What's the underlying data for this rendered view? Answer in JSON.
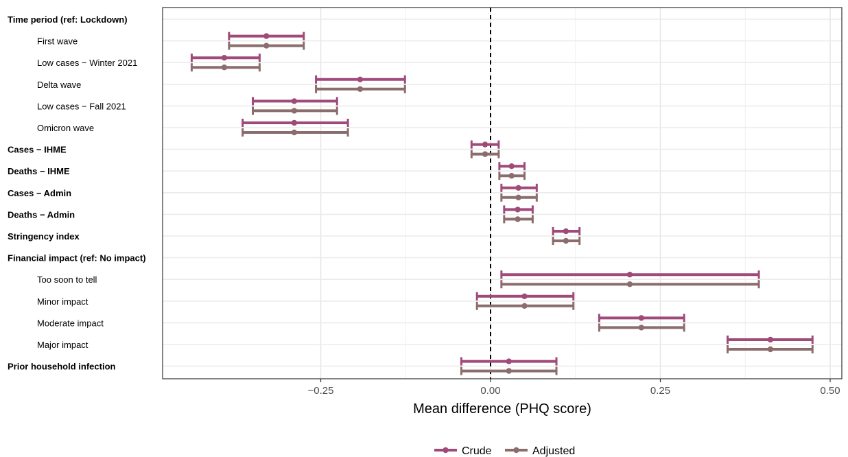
{
  "chart_data": {
    "type": "forest",
    "xlabel": "Mean difference (PHQ score)",
    "xlim": [
      -0.24,
      0.51
    ],
    "xticks": [
      -0.25,
      0.0,
      0.25,
      0.5
    ],
    "xtick_labels": [
      "−0.25",
      "0.00",
      "0.25",
      "0.50"
    ],
    "reference_line": 0,
    "grid": true,
    "legend_position": "bottom",
    "series": [
      {
        "name": "Crude",
        "color": "#a04a7a"
      },
      {
        "name": "Adjusted",
        "color": "#8c6d6d"
      }
    ],
    "rows": [
      {
        "label": "Time period (ref: Lockdown)",
        "header": true,
        "indent": false
      },
      {
        "label": "First wave",
        "header": false,
        "indent": true,
        "crude": {
          "est": -0.33,
          "lo": -0.385,
          "hi": -0.275
        },
        "adjusted": {
          "est": -0.33,
          "lo": -0.385,
          "hi": -0.275
        }
      },
      {
        "label": "Low cases − Winter 2021",
        "header": false,
        "indent": true,
        "crude": {
          "est": -0.392,
          "lo": -0.44,
          "hi": -0.34
        },
        "adjusted": {
          "est": -0.392,
          "lo": -0.44,
          "hi": -0.34
        }
      },
      {
        "label": "Delta wave",
        "header": false,
        "indent": true,
        "crude": {
          "est": -0.192,
          "lo": -0.257,
          "hi": -0.126
        },
        "adjusted": {
          "est": -0.192,
          "lo": -0.257,
          "hi": -0.126
        }
      },
      {
        "label": "Low cases − Fall 2021",
        "header": false,
        "indent": true,
        "crude": {
          "est": -0.289,
          "lo": -0.35,
          "hi": -0.226
        },
        "adjusted": {
          "est": -0.289,
          "lo": -0.35,
          "hi": -0.226
        }
      },
      {
        "label": "Omicron wave",
        "header": false,
        "indent": true,
        "crude": {
          "est": -0.289,
          "lo": -0.365,
          "hi": -0.21
        },
        "adjusted": {
          "est": -0.289,
          "lo": -0.365,
          "hi": -0.21
        }
      },
      {
        "label": "Cases − IHME",
        "header": true,
        "indent": false,
        "crude": {
          "est": -0.008,
          "lo": -0.028,
          "hi": 0.012
        },
        "adjusted": {
          "est": -0.008,
          "lo": -0.028,
          "hi": 0.012
        }
      },
      {
        "label": "Deaths − IHME",
        "header": true,
        "indent": false,
        "crude": {
          "est": 0.031,
          "lo": 0.013,
          "hi": 0.05
        },
        "adjusted": {
          "est": 0.031,
          "lo": 0.013,
          "hi": 0.05
        }
      },
      {
        "label": "Cases − Admin",
        "header": true,
        "indent": false,
        "crude": {
          "est": 0.041,
          "lo": 0.016,
          "hi": 0.068
        },
        "adjusted": {
          "est": 0.041,
          "lo": 0.016,
          "hi": 0.068
        }
      },
      {
        "label": "Deaths − Admin",
        "header": true,
        "indent": false,
        "crude": {
          "est": 0.04,
          "lo": 0.02,
          "hi": 0.062
        },
        "adjusted": {
          "est": 0.04,
          "lo": 0.02,
          "hi": 0.062
        }
      },
      {
        "label": "Stringency index",
        "header": true,
        "indent": false,
        "crude": {
          "est": 0.111,
          "lo": 0.092,
          "hi": 0.131
        },
        "adjusted": {
          "est": 0.111,
          "lo": 0.092,
          "hi": 0.131
        }
      },
      {
        "label": "Financial impact (ref: No impact)",
        "header": true,
        "indent": false
      },
      {
        "label": "Too soon to tell",
        "header": false,
        "indent": true,
        "crude": {
          "est": 0.205,
          "lo": 0.016,
          "hi": 0.395
        },
        "adjusted": {
          "est": 0.205,
          "lo": 0.016,
          "hi": 0.395
        }
      },
      {
        "label": "Minor impact",
        "header": false,
        "indent": true,
        "crude": {
          "est": 0.05,
          "lo": -0.02,
          "hi": 0.122
        },
        "adjusted": {
          "est": 0.05,
          "lo": -0.02,
          "hi": 0.122
        }
      },
      {
        "label": "Moderate impact",
        "header": false,
        "indent": true,
        "crude": {
          "est": 0.222,
          "lo": 0.16,
          "hi": 0.285
        },
        "adjusted": {
          "est": 0.222,
          "lo": 0.16,
          "hi": 0.285
        }
      },
      {
        "label": "Major impact",
        "header": false,
        "indent": true,
        "crude": {
          "est": 0.412,
          "lo": 0.349,
          "hi": 0.474
        },
        "adjusted": {
          "est": 0.412,
          "lo": 0.349,
          "hi": 0.474
        }
      },
      {
        "label": "Prior household infection",
        "header": true,
        "indent": false,
        "crude": {
          "est": 0.027,
          "lo": -0.043,
          "hi": 0.097
        },
        "adjusted": {
          "est": 0.027,
          "lo": -0.043,
          "hi": 0.097
        }
      }
    ]
  }
}
